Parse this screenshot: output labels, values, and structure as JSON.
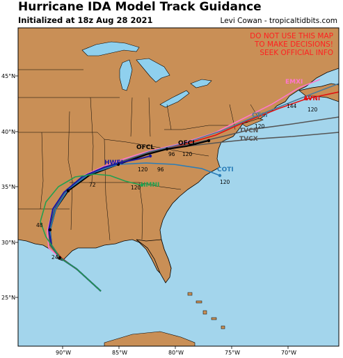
{
  "header": {
    "title": "Hurricane IDA Model Track Guidance",
    "initialized": "Initialized at 18z Aug 28 2021",
    "credit": "Levi Cowan - tropicaltidbits.com"
  },
  "warning": [
    "DO NOT USE THIS MAP",
    "TO MAKE DECISIONS!",
    "SEEK OFFICIAL INFO"
  ],
  "colors": {
    "ocean": "#a3d5ec",
    "land": "#c98f56",
    "lakes": "#8fd0ee",
    "warning": "#ff2020"
  },
  "axes": {
    "lat_labels": [
      "25°N",
      "30°N",
      "35°N",
      "40°N",
      "45°N"
    ],
    "lon_labels": [
      "90°W",
      "85°W",
      "80°W",
      "75°W",
      "70°W"
    ]
  },
  "models": [
    {
      "name": "OFCL",
      "color": "#000000"
    },
    {
      "name": "AVNI",
      "color": "#e01010"
    },
    {
      "name": "CTCI",
      "color": "#4a7a9a"
    },
    {
      "name": "TVCN",
      "color": "#555555"
    },
    {
      "name": "TVCX",
      "color": "#555555"
    },
    {
      "name": "COTI",
      "color": "#2a7db8"
    },
    {
      "name": "HWFI",
      "color": "#1a1aa0"
    },
    {
      "name": "HMNI",
      "color": "#22a050"
    },
    {
      "name": "EMXI",
      "color": "#ff77cc"
    }
  ],
  "hour_labels": {
    "avni": "120",
    "avni_144": "144",
    "tvcn": "120",
    "coti": "120",
    "hmni": "120",
    "ofcl_96": "96",
    "ofcl_120": "120",
    "hwfi_96": "96",
    "hwfi_120": "120",
    "h72": "72",
    "h48": "48",
    "h24": "24"
  }
}
